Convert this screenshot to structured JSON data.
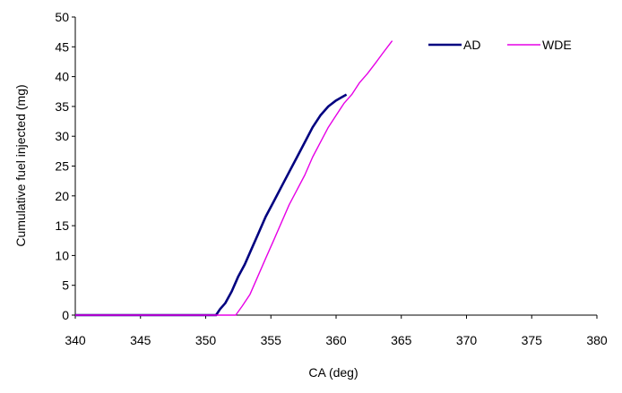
{
  "chart_data": {
    "type": "line",
    "title": "",
    "xlabel": "CA (deg)",
    "ylabel": "Cumulative fuel injected (mg)",
    "xlim": [
      340,
      380
    ],
    "ylim": [
      0,
      50
    ],
    "x_ticks": [
      340,
      345,
      350,
      355,
      360,
      365,
      370,
      375,
      380
    ],
    "y_ticks": [
      0,
      5,
      10,
      15,
      20,
      25,
      30,
      35,
      40,
      45,
      50
    ],
    "grid": false,
    "legend_position": "top-right",
    "series": [
      {
        "name": "AD",
        "color": "#000080",
        "points": [
          [
            340,
            0
          ],
          [
            350.8,
            0
          ],
          [
            351.1,
            1
          ],
          [
            351.5,
            2
          ],
          [
            352,
            4
          ],
          [
            352.5,
            6.5
          ],
          [
            353,
            8.5
          ],
          [
            353.5,
            11
          ],
          [
            354,
            13.5
          ],
          [
            354.6,
            16.5
          ],
          [
            355.2,
            19
          ],
          [
            355.8,
            21.5
          ],
          [
            356.4,
            24
          ],
          [
            357,
            26.5
          ],
          [
            357.6,
            29
          ],
          [
            358.2,
            31.5
          ],
          [
            358.8,
            33.5
          ],
          [
            359.4,
            35
          ],
          [
            360,
            36
          ],
          [
            360.4,
            36.5
          ],
          [
            360.8,
            37
          ]
        ]
      },
      {
        "name": "WDE",
        "color": "#e600e6",
        "points": [
          [
            340,
            0
          ],
          [
            352.3,
            0
          ],
          [
            352.8,
            1.5
          ],
          [
            353.4,
            3.5
          ],
          [
            354,
            6.5
          ],
          [
            354.6,
            9.5
          ],
          [
            355.2,
            12.5
          ],
          [
            355.8,
            15.5
          ],
          [
            356.4,
            18.5
          ],
          [
            357,
            21
          ],
          [
            357.6,
            23.5
          ],
          [
            358.2,
            26.5
          ],
          [
            358.8,
            29
          ],
          [
            359.4,
            31.5
          ],
          [
            360,
            33.5
          ],
          [
            360.6,
            35.5
          ],
          [
            361.2,
            37
          ],
          [
            361.8,
            39
          ],
          [
            362.4,
            40.5
          ],
          [
            363,
            42.2
          ],
          [
            363.6,
            44
          ],
          [
            364.3,
            46
          ]
        ]
      }
    ]
  }
}
